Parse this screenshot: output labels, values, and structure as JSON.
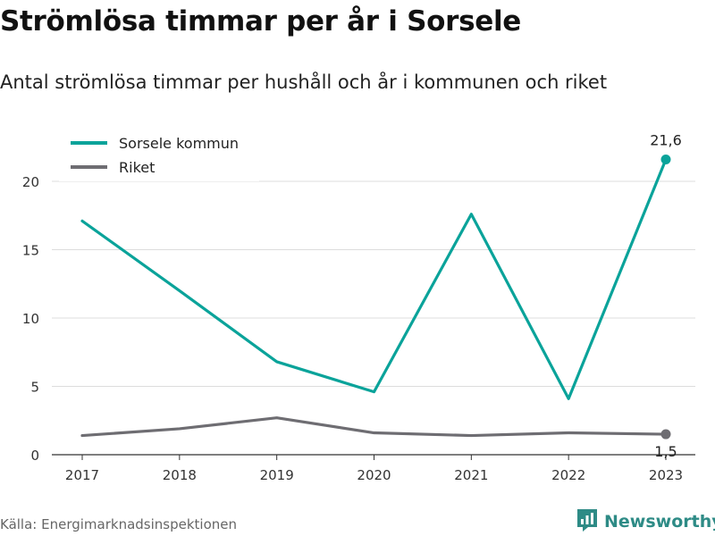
{
  "title": "Strömlösa timmar per år i Sorsele",
  "subtitle": "Antal strömlösa timmar per hushåll och år i kommunen och riket",
  "source": "Källa: Energimarknadsinspektionen",
  "brand": {
    "name": "Newsworthy",
    "icon": "bar-chart-logo-icon",
    "color": "#2e8b86"
  },
  "chart_data": {
    "type": "line",
    "x": [
      "2017",
      "2018",
      "2019",
      "2020",
      "2021",
      "2022",
      "2023"
    ],
    "ylim": [
      0,
      22
    ],
    "yticks": [
      0,
      5,
      10,
      15,
      20
    ],
    "grid": true,
    "legend_position": "top-left",
    "series": [
      {
        "name": "Sorsele kommun",
        "color": "#0aa39a",
        "values": [
          17.1,
          12.0,
          6.8,
          4.6,
          17.6,
          4.1,
          21.6
        ],
        "end_label": "21,6"
      },
      {
        "name": "Riket",
        "color": "#6e6d72",
        "values": [
          1.4,
          1.9,
          2.7,
          1.6,
          1.4,
          1.6,
          1.5
        ],
        "end_label": "1,5"
      }
    ]
  }
}
